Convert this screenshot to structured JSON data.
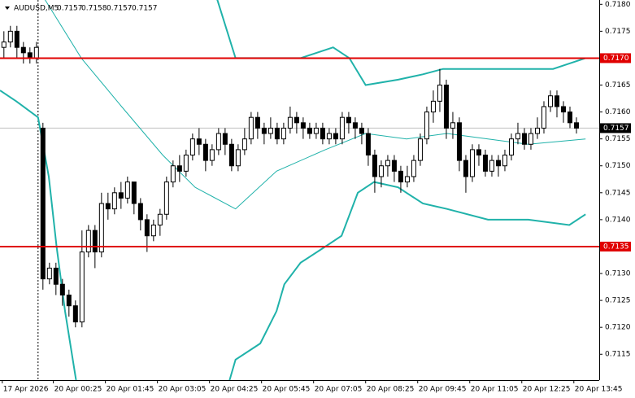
{
  "chart_data": {
    "type": "candlestick",
    "header": {
      "symbol": "AUDUSD,M5",
      "values": [
        0.7157,
        0.7158,
        0.7157,
        0.7157
      ]
    },
    "open": [
      0.7172,
      0.7173,
      0.7175,
      0.7172,
      0.7171,
      0.717,
      0.7157,
      0.7129,
      0.7131,
      0.7128,
      0.7126,
      0.7124,
      0.7121,
      0.7134,
      0.7138,
      0.7134,
      0.7143,
      0.7142,
      0.7145,
      0.7144,
      0.7147,
      0.7143,
      0.714,
      0.7137,
      0.7139,
      0.7141,
      0.7147,
      0.715,
      0.7149,
      0.7152,
      0.7155,
      0.7154,
      0.7151,
      0.7153,
      0.7156,
      0.7154,
      0.715,
      0.7153,
      0.7155,
      0.7159,
      0.7157,
      0.7156,
      0.7157,
      0.7155,
      0.7157,
      0.7159,
      0.7158,
      0.7157,
      0.7156,
      0.7157,
      0.7155,
      0.7156,
      0.7155,
      0.7159,
      0.7158,
      0.7157,
      0.7156,
      0.7152,
      0.7148,
      0.715,
      0.7151,
      0.7149,
      0.7147,
      0.7148,
      0.7151,
      0.7155,
      0.716,
      0.7162,
      0.7165,
      0.7157,
      0.7158,
      0.7151,
      0.7148,
      0.7153,
      0.7152,
      0.7149,
      0.7151,
      0.715,
      0.7152,
      0.7155,
      0.7156,
      0.7154,
      0.7156,
      0.7157,
      0.7161,
      0.7163,
      0.7161,
      0.716,
      0.7158
    ],
    "high": [
      0.7175,
      0.7176,
      0.7176,
      0.7173,
      0.7172,
      0.7173,
      0.7158,
      0.7132,
      0.7132,
      0.7129,
      0.7127,
      0.7125,
      0.7138,
      0.7139,
      0.7139,
      0.7145,
      0.7145,
      0.7146,
      0.7147,
      0.7148,
      0.7147,
      0.7144,
      0.7141,
      0.714,
      0.7142,
      0.7148,
      0.7151,
      0.7152,
      0.7153,
      0.7156,
      0.7157,
      0.7155,
      0.7154,
      0.7157,
      0.7157,
      0.7155,
      0.7154,
      0.7157,
      0.716,
      0.716,
      0.7158,
      0.7159,
      0.7158,
      0.7158,
      0.7161,
      0.716,
      0.7159,
      0.7158,
      0.7158,
      0.7158,
      0.7157,
      0.7157,
      0.716,
      0.716,
      0.7159,
      0.7158,
      0.7157,
      0.7153,
      0.7151,
      0.7152,
      0.7152,
      0.715,
      0.715,
      0.7152,
      0.7156,
      0.7161,
      0.7164,
      0.7168,
      0.7166,
      0.716,
      0.7159,
      0.7152,
      0.7154,
      0.7154,
      0.7153,
      0.7152,
      0.7152,
      0.7153,
      0.7156,
      0.7158,
      0.7157,
      0.7157,
      0.7159,
      0.7162,
      0.7164,
      0.7164,
      0.7162,
      0.7161,
      0.7159
    ],
    "low": [
      0.717,
      0.7172,
      0.717,
      0.7169,
      0.7169,
      0.7169,
      0.7127,
      0.7128,
      0.7126,
      0.7124,
      0.7122,
      0.712,
      0.712,
      0.7133,
      0.7131,
      0.7133,
      0.714,
      0.7141,
      0.7142,
      0.7143,
      0.7141,
      0.7138,
      0.7134,
      0.7136,
      0.7137,
      0.714,
      0.7146,
      0.7147,
      0.7148,
      0.7151,
      0.7152,
      0.7149,
      0.715,
      0.7152,
      0.7152,
      0.7149,
      0.7149,
      0.7152,
      0.7154,
      0.7155,
      0.7154,
      0.7155,
      0.7154,
      0.7154,
      0.7156,
      0.7156,
      0.7155,
      0.7155,
      0.7155,
      0.7154,
      0.7154,
      0.7154,
      0.7154,
      0.7156,
      0.7155,
      0.7154,
      0.715,
      0.7145,
      0.7146,
      0.7148,
      0.7147,
      0.7145,
      0.7146,
      0.7147,
      0.715,
      0.7154,
      0.7158,
      0.716,
      0.7155,
      0.7155,
      0.7149,
      0.7145,
      0.7147,
      0.715,
      0.7148,
      0.7148,
      0.7148,
      0.7149,
      0.7151,
      0.7154,
      0.7153,
      0.7153,
      0.7155,
      0.7156,
      0.716,
      0.7159,
      0.7158,
      0.7157,
      0.7156
    ],
    "close": [
      0.7173,
      0.7175,
      0.7172,
      0.7171,
      0.717,
      0.7172,
      0.7129,
      0.7131,
      0.7128,
      0.7126,
      0.7124,
      0.7121,
      0.7134,
      0.7138,
      0.7134,
      0.7143,
      0.7142,
      0.7145,
      0.7144,
      0.7147,
      0.7143,
      0.714,
      0.7137,
      0.7139,
      0.7141,
      0.7147,
      0.715,
      0.7149,
      0.7152,
      0.7155,
      0.7154,
      0.7151,
      0.7153,
      0.7156,
      0.7154,
      0.715,
      0.7153,
      0.7155,
      0.7159,
      0.7157,
      0.7156,
      0.7157,
      0.7155,
      0.7157,
      0.7159,
      0.7158,
      0.7157,
      0.7156,
      0.7157,
      0.7155,
      0.7156,
      0.7155,
      0.7159,
      0.7158,
      0.7157,
      0.7156,
      0.7152,
      0.7148,
      0.715,
      0.7151,
      0.7149,
      0.7147,
      0.7148,
      0.7151,
      0.7155,
      0.716,
      0.7162,
      0.7165,
      0.7157,
      0.7158,
      0.7151,
      0.7148,
      0.7153,
      0.7152,
      0.7149,
      0.7151,
      0.715,
      0.7152,
      0.7155,
      0.7156,
      0.7154,
      0.7156,
      0.7157,
      0.7161,
      0.7163,
      0.7161,
      0.716,
      0.7158,
      0.7157
    ],
    "up_color": "#ffffff",
    "down_color": "#000000",
    "wick_color": "#000000",
    "bands": [
      {
        "color": "#20b2aa",
        "width": 2,
        "x": [
          32.5,
          35.6,
          41.9,
          45.6,
          50.6,
          53.1,
          55.6,
          60.6,
          64.4,
          67.5,
          74.4,
          84.4,
          86.9,
          89.4
        ],
        "values": [
          0.7182,
          0.717,
          0.717,
          0.717,
          0.7172,
          0.717,
          0.7165,
          0.7166,
          0.7167,
          0.7168,
          0.7168,
          0.7168,
          0.7169,
          0.717
        ]
      },
      {
        "color": "#20b2aa",
        "width": 1,
        "x": [
          6.25,
          11.9,
          18.1,
          24.4,
          29.4,
          35.6,
          41.9,
          49.4,
          55.6,
          61.9,
          68.1,
          74.4,
          80.6,
          89.4
        ],
        "values": [
          0.7181,
          0.717,
          0.7161,
          0.7152,
          0.7146,
          0.7142,
          0.7149,
          0.7153,
          0.7156,
          0.7155,
          0.7156,
          0.7155,
          0.7154,
          0.7155
        ]
      },
      {
        "color": "#20b2aa",
        "width": 2,
        "x": [
          -0.6,
          1.9,
          5.25,
          6.9,
          8.1,
          9.4,
          11.25,
          20,
          34.4,
          35.6,
          39.4,
          41.9,
          43.1,
          45.6,
          49.4,
          51.9,
          54.4,
          56.9,
          60.6,
          64.4,
          68.1,
          74.4,
          80.6,
          86.9,
          89.4
        ],
        "values": [
          0.7164,
          0.7162,
          0.7159,
          0.7148,
          0.7135,
          0.7123,
          0.7109,
          null,
          0.7109,
          0.7114,
          0.7117,
          0.7123,
          0.7128,
          0.7132,
          0.7135,
          0.7137,
          0.7145,
          0.7147,
          0.7146,
          0.7143,
          0.7142,
          0.714,
          0.714,
          0.7139,
          0.7141
        ]
      }
    ],
    "levels": [
      {
        "value": 0.717,
        "label": "0.7170"
      },
      0.7135
    ],
    "level_color": "#e00000",
    "current_price": 0.7157,
    "day_separator": 5.25,
    "xlim": [
      -0.6,
      91.5
    ],
    "ylim": [
      0.71102,
      0.71808
    ],
    "xticks": [
      {
        "value": -0.25,
        "label": "17 Apr 2026"
      },
      {
        "value": 7.6,
        "label": "20 Apr 00:25"
      },
      {
        "value": 15.6,
        "label": "20 Apr 01:45"
      },
      {
        "value": 23.6,
        "label": "20 Apr 03:05"
      },
      {
        "value": 31.6,
        "label": "20 Apr 04:25"
      },
      {
        "value": 39.6,
        "label": "20 Apr 05:45"
      },
      {
        "value": 47.6,
        "label": "20 Apr 07:05"
      },
      {
        "value": 55.6,
        "label": "20 Apr 08:25"
      },
      {
        "value": 63.6,
        "label": "20 Apr 09:45"
      },
      {
        "value": 71.6,
        "label": "20 Apr 11:05"
      },
      {
        "value": 79.6,
        "label": "20 Apr 12:25"
      },
      {
        "value": 87.6,
        "label": "20 Apr 13:45"
      }
    ],
    "yticks": [
      0.7115,
      {
        "value": 0.712,
        "label": "0.7120"
      },
      0.7125,
      {
        "value": 0.713,
        "label": "0.7130"
      },
      0.7135,
      {
        "value": 0.714,
        "label": "0.7140"
      },
      0.7145,
      {
        "value": 0.715,
        "label": "0.7150"
      },
      0.7155,
      {
        "value": 0.716,
        "label": "0.7160"
      },
      0.7165,
      {
        "value": 0.717,
        "label": "0.7170"
      },
      0.7175,
      {
        "value": 0.718,
        "label": "0.7180"
      }
    ],
    "grid": false
  }
}
